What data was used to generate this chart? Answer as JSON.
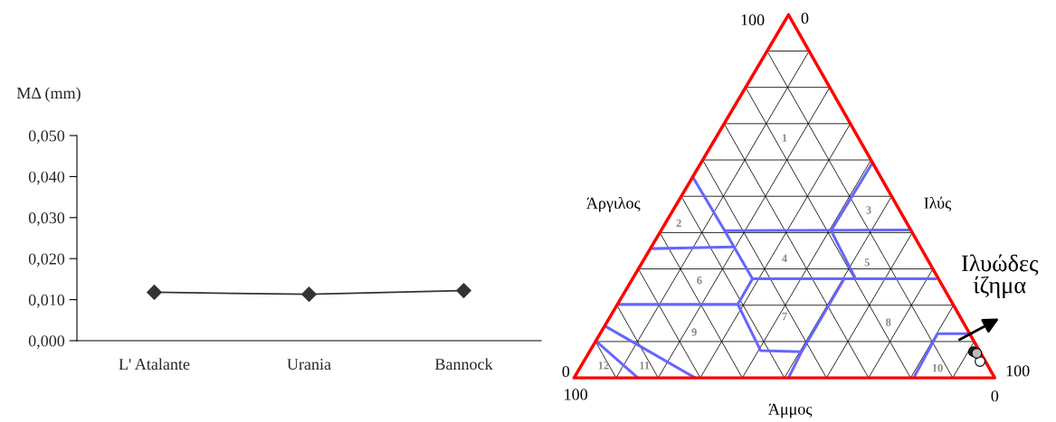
{
  "chart_data": [
    {
      "type": "line",
      "ylabel": "ΜΔ (mm)",
      "categories": [
        "L' Atalante",
        "Urania",
        "Bannock"
      ],
      "series": [
        {
          "color": "#333333",
          "values": [
            0.0118,
            0.0113,
            0.0122
          ]
        }
      ],
      "ylim": [
        0,
        0.05
      ],
      "yticks": [
        {
          "value": 0,
          "label": "0,000"
        },
        {
          "value": 0.01,
          "label": "0,010"
        },
        {
          "value": 0.02,
          "label": "0,020"
        },
        {
          "value": 0.03,
          "label": "0,030"
        },
        {
          "value": 0.04,
          "label": "0,040"
        },
        {
          "value": 0.05,
          "label": "0,050"
        }
      ],
      "marker": "diamond",
      "grid": false
    },
    {
      "type": "other",
      "annotations": [
        "100",
        "0",
        "Άργιλος",
        "Ιλύς",
        "Ιλυώδες\nίζημα",
        "0",
        "100",
        "100",
        "0",
        "Άμμος",
        "1",
        "2",
        "3",
        "4",
        "5",
        "6",
        "7",
        "8",
        "9",
        "10",
        "11",
        "12"
      ]
    }
  ]
}
